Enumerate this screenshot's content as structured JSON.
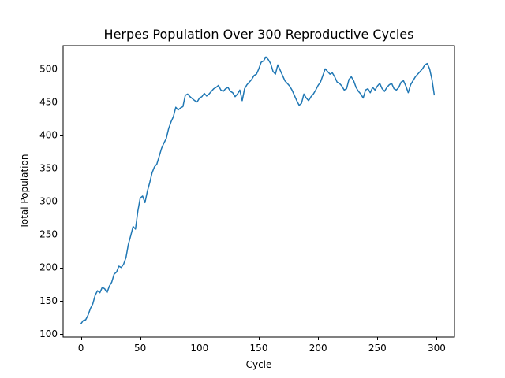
{
  "chart_data": {
    "type": "line",
    "title": "Herpes Population Over 300 Reproductive Cycles",
    "xlabel": "Cycle",
    "ylabel": "Total Population",
    "xlim": [
      -15,
      315
    ],
    "ylim": [
      95,
      535
    ],
    "xticks": [
      0,
      50,
      100,
      150,
      200,
      250,
      300
    ],
    "yticks": [
      100,
      150,
      200,
      250,
      300,
      350,
      400,
      450,
      500
    ],
    "grid": false,
    "legend": "none",
    "series": [
      {
        "name": "Total Population",
        "color": "#1f77b4",
        "x": [
          0,
          2,
          4,
          6,
          8,
          10,
          12,
          14,
          16,
          18,
          20,
          22,
          24,
          26,
          28,
          30,
          32,
          34,
          36,
          38,
          40,
          42,
          44,
          46,
          48,
          50,
          52,
          54,
          56,
          58,
          60,
          62,
          64,
          66,
          68,
          70,
          72,
          74,
          76,
          78,
          80,
          82,
          84,
          86,
          88,
          90,
          92,
          94,
          96,
          98,
          100,
          102,
          104,
          106,
          108,
          110,
          112,
          114,
          116,
          118,
          120,
          122,
          124,
          126,
          128,
          130,
          132,
          134,
          136,
          138,
          140,
          142,
          144,
          146,
          148,
          150,
          152,
          154,
          156,
          158,
          160,
          162,
          164,
          166,
          168,
          170,
          172,
          174,
          176,
          178,
          180,
          182,
          184,
          186,
          188,
          190,
          192,
          194,
          196,
          198,
          200,
          202,
          204,
          206,
          208,
          210,
          212,
          214,
          216,
          218,
          220,
          222,
          224,
          226,
          228,
          230,
          232,
          234,
          236,
          238,
          240,
          242,
          244,
          246,
          248,
          250,
          252,
          254,
          256,
          258,
          260,
          262,
          264,
          266,
          268,
          270,
          272,
          274,
          276,
          278,
          280,
          282,
          284,
          286,
          288,
          290,
          292,
          294,
          296,
          298
        ],
        "y": [
          115,
          120,
          121,
          128,
          138,
          145,
          158,
          165,
          162,
          170,
          168,
          162,
          172,
          178,
          190,
          193,
          202,
          200,
          205,
          215,
          235,
          248,
          262,
          258,
          285,
          305,
          308,
          298,
          315,
          328,
          343,
          352,
          356,
          368,
          380,
          388,
          395,
          410,
          420,
          428,
          442,
          438,
          441,
          443,
          460,
          462,
          458,
          455,
          452,
          450,
          456,
          458,
          463,
          459,
          462,
          466,
          470,
          472,
          475,
          468,
          466,
          470,
          472,
          466,
          464,
          458,
          462,
          468,
          452,
          470,
          476,
          480,
          484,
          490,
          492,
          500,
          510,
          512,
          518,
          514,
          508,
          496,
          492,
          506,
          498,
          490,
          482,
          478,
          474,
          468,
          460,
          452,
          445,
          448,
          462,
          456,
          452,
          458,
          462,
          468,
          475,
          480,
          490,
          500,
          496,
          492,
          494,
          488,
          480,
          478,
          474,
          468,
          470,
          484,
          488,
          482,
          472,
          466,
          462,
          456,
          468,
          470,
          464,
          472,
          468,
          474,
          478,
          470,
          466,
          472,
          476,
          478,
          470,
          468,
          472,
          480,
          482,
          474,
          464,
          476,
          482,
          488,
          492,
          496,
          500,
          506,
          508,
          500,
          484,
          460
        ]
      }
    ]
  }
}
